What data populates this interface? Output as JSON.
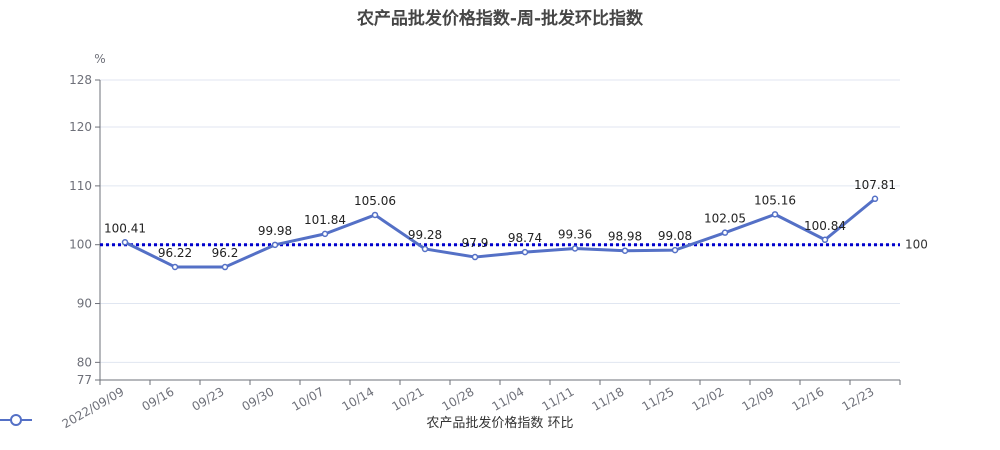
{
  "chart_data": {
    "type": "line",
    "title": "农产品批发价格指数-周-批发环比指数",
    "ylabel": "%",
    "ylim": [
      77,
      128
    ],
    "yticks": [
      77,
      80,
      90,
      100,
      110,
      120,
      128
    ],
    "categories": [
      "2022/09/09",
      "09/16",
      "09/23",
      "09/30",
      "10/07",
      "10/14",
      "10/21",
      "10/28",
      "11/04",
      "11/11",
      "11/18",
      "11/25",
      "12/02",
      "12/09",
      "12/16",
      "12/23"
    ],
    "series": [
      {
        "name": "农产品批发价格指数 环比",
        "values": [
          100.41,
          96.22,
          96.2,
          99.98,
          101.84,
          105.06,
          99.28,
          97.9,
          98.74,
          99.36,
          98.98,
          99.08,
          102.05,
          105.16,
          100.84,
          107.81
        ],
        "labels": [
          "100.41",
          "96.22",
          "96.2",
          "99.98",
          "101.84",
          "105.06",
          "99.28",
          "97.9",
          "98.74",
          "99.36",
          "98.98",
          "99.08",
          "102.05",
          "105.16",
          "100.84",
          "107.81"
        ],
        "color": "#5470c6"
      }
    ],
    "reference_line": {
      "value": 100,
      "label": "100",
      "color": "#0000cc"
    },
    "grid": true,
    "legend_position": "bottom-center"
  }
}
